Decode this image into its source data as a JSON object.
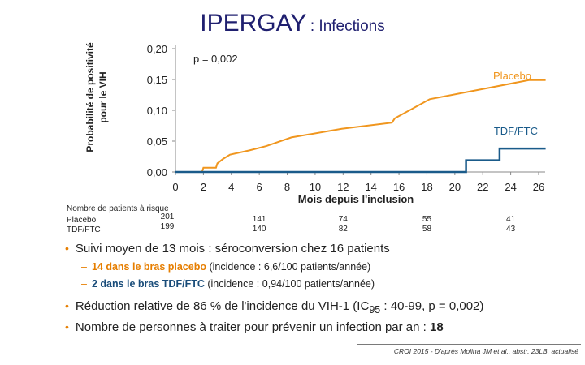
{
  "title": {
    "main": "IPERGAY",
    "sub": ": Infections"
  },
  "chart_data": {
    "type": "line",
    "title": "IPERGAY : Infections",
    "ylabel_lines": [
      "Probabilité de positivité",
      "pour le VIH"
    ],
    "xlabel": "Mois depuis l'inclusion",
    "ylim": [
      0,
      0.2
    ],
    "xlim": [
      0,
      26
    ],
    "yticks": [
      "0,00",
      "0,05",
      "0,10",
      "0,15",
      "0,20"
    ],
    "ytick_values": [
      0,
      0.05,
      0.1,
      0.15,
      0.2
    ],
    "xticks": [
      "0",
      "2",
      "4",
      "6",
      "8",
      "10",
      "12",
      "14",
      "16",
      "18",
      "20",
      "22",
      "24",
      "26"
    ],
    "xtick_values": [
      0,
      2,
      4,
      6,
      8,
      10,
      12,
      14,
      16,
      18,
      20,
      22,
      24,
      26
    ],
    "pvalue": "p = 0,002",
    "series": [
      {
        "name": "Placebo",
        "color": "#f0961e",
        "x": [
          0,
          1.9,
          2.0,
          2.9,
          3.0,
          3.4,
          3.9,
          5.3,
          6.5,
          8.3,
          11.9,
          15.5,
          15.7,
          18.2,
          25.3,
          26.5
        ],
        "y": [
          0,
          0,
          0.007,
          0.007,
          0.014,
          0.021,
          0.028,
          0.035,
          0.042,
          0.056,
          0.07,
          0.08,
          0.087,
          0.118,
          0.149,
          0.149
        ]
      },
      {
        "name": "TDF/FTC",
        "color": "#1a5b8a",
        "x": [
          0,
          20.8,
          20.8,
          23.2,
          23.2,
          26.5
        ],
        "y": [
          0,
          0,
          0.019,
          0.019,
          0.038,
          0.038
        ]
      }
    ],
    "risk_table": {
      "header": "Nombre de patients à risque",
      "rows": [
        {
          "label": "Placebo",
          "values": [
            "201",
            "141",
            "74",
            "55",
            "41"
          ]
        },
        {
          "label": "TDF/FTC",
          "values": [
            "199",
            "140",
            "82",
            "58",
            "43"
          ]
        }
      ],
      "months": [
        0,
        6,
        12,
        18,
        24
      ]
    }
  },
  "bullets": {
    "b1": "Suivi moyen de 13 mois : séroconversion chez 16 patients",
    "b1a_bold": "14 dans le bras placebo",
    "b1a_rest": " (incidence : 6,6/100 patients/année)",
    "b1b_bold": "2 dans le bras TDF/FTC",
    "b1b_rest": " (incidence : 0,94/100 patients/année)",
    "b2_pre": "Réduction relative de 86 % de l'incidence du VIH-1 (IC",
    "b2_sub": "95",
    "b2_post": " : 40-99, p = 0,002)",
    "b3_pre": "Nombre de personnes à traiter pour prévenir un infection par an : ",
    "b3_bold": "18"
  },
  "reference": "CROI 2015 - D'après Molina JM et al., abstr. 23LB, actualisé"
}
